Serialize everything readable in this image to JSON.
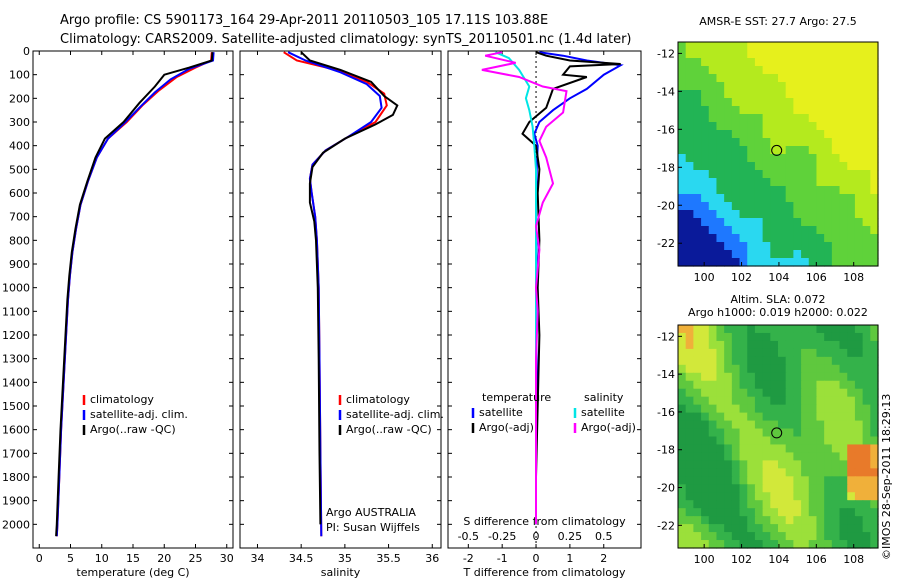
{
  "header": {
    "line1": "Argo profile: CS 5901173_164 29-Apr-2011 20110503_105 17.11S 103.88E",
    "line2": "Climatology: CARS2009. Satellite-adjusted climatology: synTS_20110501.nc (1.4d later)"
  },
  "credit": "©IMOS 28-Sep-2011 18:29:13",
  "colors": {
    "climatology": "#ff0000",
    "satellite": "#0000ff",
    "argo": "#000000",
    "sal_satellite": "#00e5e5",
    "sal_argo": "#ff00ff"
  },
  "chart_data": [
    {
      "type": "line",
      "id": "temperature",
      "xlabel": "temperature (deg C)",
      "ylabel": "",
      "xlim": [
        -1,
        31
      ],
      "ylim": [
        2100,
        0
      ],
      "xticks": [
        0,
        5,
        10,
        15,
        20,
        25,
        30
      ],
      "yticks": [
        0,
        100,
        200,
        300,
        400,
        500,
        600,
        700,
        800,
        900,
        1000,
        1100,
        1200,
        1300,
        1400,
        1500,
        1600,
        1700,
        1800,
        1900,
        2000
      ],
      "legend": [
        "climatology",
        "satellite-adj. clim.",
        "Argo(..raw -QC)"
      ],
      "series": [
        {
          "name": "climatology",
          "points": [
            [
              27.6,
              5
            ],
            [
              27.5,
              40
            ],
            [
              25,
              70
            ],
            [
              22,
              110
            ],
            [
              19,
              170
            ],
            [
              16.5,
              230
            ],
            [
              14,
              300
            ],
            [
              11,
              370
            ],
            [
              9.2,
              450
            ],
            [
              7.8,
              550
            ],
            [
              6.6,
              650
            ],
            [
              5.9,
              750
            ],
            [
              5.3,
              850
            ],
            [
              4.9,
              950
            ],
            [
              4.6,
              1050
            ],
            [
              4.3,
              1200
            ],
            [
              3.9,
              1400
            ],
            [
              3.5,
              1600
            ],
            [
              3.2,
              1800
            ],
            [
              2.9,
              2000
            ],
            [
              2.8,
              2050
            ]
          ]
        },
        {
          "name": "satellite-adj. clim.",
          "points": [
            [
              27.9,
              5
            ],
            [
              27.8,
              40
            ],
            [
              24,
              75
            ],
            [
              21,
              120
            ],
            [
              18.5,
              175
            ],
            [
              16.2,
              235
            ],
            [
              13.8,
              300
            ],
            [
              11,
              370
            ],
            [
              9.2,
              450
            ],
            [
              7.8,
              550
            ],
            [
              6.6,
              650
            ],
            [
              5.9,
              750
            ],
            [
              5.3,
              850
            ],
            [
              4.9,
              950
            ],
            [
              4.6,
              1050
            ],
            [
              4.3,
              1200
            ],
            [
              3.9,
              1400
            ],
            [
              3.5,
              1600
            ],
            [
              3.2,
              1800
            ],
            [
              2.9,
              2000
            ],
            [
              2.8,
              2050
            ]
          ]
        },
        {
          "name": "Argo(..raw -QC)",
          "points": [
            [
              27.7,
              5
            ],
            [
              27.6,
              40
            ],
            [
              24,
              70
            ],
            [
              20,
              100
            ],
            [
              18.5,
              150
            ],
            [
              16,
              220
            ],
            [
              13.5,
              300
            ],
            [
              10.5,
              370
            ],
            [
              9,
              450
            ],
            [
              7.7,
              550
            ],
            [
              6.5,
              650
            ],
            [
              5.8,
              750
            ],
            [
              5.2,
              850
            ],
            [
              4.8,
              950
            ],
            [
              4.5,
              1050
            ],
            [
              4.2,
              1200
            ],
            [
              3.8,
              1400
            ],
            [
              3.4,
              1600
            ],
            [
              3.1,
              1800
            ],
            [
              2.8,
              2000
            ],
            [
              2.7,
              2050
            ]
          ]
        }
      ]
    },
    {
      "type": "line",
      "id": "salinity",
      "xlabel": "salinity",
      "ylabel": "",
      "xlim": [
        33.8,
        36.1
      ],
      "ylim": [
        2100,
        0
      ],
      "xticks": [
        34,
        34.5,
        35,
        35.5,
        36
      ],
      "legend": [
        "climatology",
        "satellite-adj. clim.",
        "Argo(..raw -QC)"
      ],
      "annotation": [
        "Argo AUSTRALIA",
        "PI: Susan Wijffels"
      ],
      "series": [
        {
          "name": "climatology",
          "points": [
            [
              34.3,
              5
            ],
            [
              34.45,
              40
            ],
            [
              34.9,
              80
            ],
            [
              35.25,
              130
            ],
            [
              35.45,
              180
            ],
            [
              35.48,
              230
            ],
            [
              35.35,
              300
            ],
            [
              35.05,
              360
            ],
            [
              34.78,
              420
            ],
            [
              34.63,
              480
            ],
            [
              34.6,
              540
            ],
            [
              34.62,
              600
            ],
            [
              34.66,
              700
            ],
            [
              34.68,
              800
            ],
            [
              34.7,
              1000
            ],
            [
              34.71,
              1300
            ],
            [
              34.72,
              1700
            ],
            [
              34.73,
              2050
            ]
          ]
        },
        {
          "name": "satellite-adj. clim.",
          "points": [
            [
              34.35,
              5
            ],
            [
              34.55,
              40
            ],
            [
              34.95,
              90
            ],
            [
              35.25,
              140
            ],
            [
              35.4,
              190
            ],
            [
              35.42,
              240
            ],
            [
              35.3,
              300
            ],
            [
              35.05,
              360
            ],
            [
              34.78,
              420
            ],
            [
              34.63,
              480
            ],
            [
              34.6,
              540
            ],
            [
              34.62,
              600
            ],
            [
              34.66,
              700
            ],
            [
              34.68,
              800
            ],
            [
              34.7,
              1000
            ],
            [
              34.71,
              1300
            ],
            [
              34.72,
              1700
            ],
            [
              34.73,
              2050
            ]
          ]
        },
        {
          "name": "Argo(..raw -QC)",
          "points": [
            [
              34.5,
              5
            ],
            [
              34.6,
              40
            ],
            [
              34.95,
              80
            ],
            [
              35.3,
              130
            ],
            [
              35.45,
              190
            ],
            [
              35.6,
              230
            ],
            [
              35.55,
              270
            ],
            [
              35.35,
              310
            ],
            [
              35.0,
              370
            ],
            [
              34.75,
              430
            ],
            [
              34.63,
              490
            ],
            [
              34.6,
              560
            ],
            [
              34.6,
              640
            ],
            [
              34.65,
              720
            ],
            [
              34.67,
              800
            ],
            [
              34.69,
              1000
            ],
            [
              34.7,
              1300
            ],
            [
              34.71,
              1700
            ],
            [
              34.72,
              2000
            ]
          ]
        }
      ]
    },
    {
      "type": "line",
      "id": "differences",
      "xlabel": "T difference from climatology",
      "xlabel_top": "S difference from climatology",
      "xlim": [
        -2.6,
        3.1
      ],
      "ylim": [
        2100,
        0
      ],
      "xticks_T": [
        -2,
        -1,
        0,
        1,
        2
      ],
      "xticks_S": [
        "-0.5",
        "-0.25",
        "0",
        "0.25",
        "0.5"
      ],
      "xticks_S_pos": [
        -2,
        -1,
        0,
        1,
        2
      ],
      "legend_left_title": "temperature",
      "legend_right_title": "salinity",
      "legend": [
        "satellite",
        "Argo(-adj)",
        "satellite",
        "Argo(-adj)"
      ],
      "series": [
        {
          "name": "satellite",
          "quantity": "temperature",
          "points": [
            [
              0.1,
              5
            ],
            [
              0.8,
              20
            ],
            [
              1.5,
              40
            ],
            [
              2.5,
              60
            ],
            [
              2.0,
              100
            ],
            [
              1.5,
              160
            ],
            [
              1.0,
              200
            ],
            [
              0.5,
              250
            ],
            [
              0.1,
              300
            ],
            [
              -0.05,
              350
            ],
            [
              0.05,
              400
            ],
            [
              0.02,
              500
            ],
            [
              0.0,
              700
            ],
            [
              0.02,
              900
            ],
            [
              0.0,
              1100
            ],
            [
              0.02,
              1400
            ],
            [
              0.0,
              1700
            ],
            [
              0.0,
              2000
            ]
          ]
        },
        {
          "name": "Argo(-adj)",
          "quantity": "temperature",
          "points": [
            [
              0.0,
              5
            ],
            [
              0.3,
              20
            ],
            [
              1.0,
              40
            ],
            [
              2.5,
              55
            ],
            [
              1.0,
              65
            ],
            [
              0.8,
              100
            ],
            [
              1.5,
              110
            ],
            [
              0.5,
              160
            ],
            [
              0.3,
              240
            ],
            [
              -0.2,
              300
            ],
            [
              -0.4,
              350
            ],
            [
              0.0,
              400
            ],
            [
              0.1,
              500
            ],
            [
              0.05,
              600
            ],
            [
              0.1,
              800
            ],
            [
              0.05,
              1000
            ],
            [
              0.1,
              1200
            ],
            [
              0.05,
              1500
            ],
            [
              0.0,
              1800
            ],
            [
              0.0,
              2000
            ]
          ]
        },
        {
          "name": "satellite",
          "quantity": "salinity",
          "points": [
            [
              -1.2,
              5
            ],
            [
              -0.8,
              30
            ],
            [
              -0.5,
              80
            ],
            [
              -0.2,
              150
            ],
            [
              -0.3,
              200
            ],
            [
              -0.2,
              250
            ],
            [
              -0.1,
              320
            ],
            [
              -0.05,
              400
            ],
            [
              0.0,
              500
            ],
            [
              0.0,
              700
            ],
            [
              0.0,
              1000
            ],
            [
              0.0,
              1400
            ],
            [
              0.0,
              2000
            ]
          ]
        },
        {
          "name": "Argo(-adj)",
          "quantity": "salinity",
          "points": [
            [
              -1.0,
              5
            ],
            [
              -1.5,
              20
            ],
            [
              -0.6,
              50
            ],
            [
              -1.6,
              80
            ],
            [
              -0.5,
              110
            ],
            [
              0.2,
              150
            ],
            [
              0.9,
              170
            ],
            [
              0.8,
              260
            ],
            [
              0.3,
              320
            ],
            [
              0.1,
              380
            ],
            [
              0.3,
              450
            ],
            [
              0.5,
              560
            ],
            [
              0.2,
              640
            ],
            [
              0.0,
              740
            ],
            [
              0.1,
              840
            ],
            [
              0.0,
              1000
            ],
            [
              0.05,
              1100
            ],
            [
              0.0,
              1300
            ],
            [
              0.0,
              1600
            ],
            [
              0.0,
              2000
            ]
          ]
        }
      ]
    },
    {
      "type": "heatmap",
      "id": "sst-map",
      "title": "AMSR-E SST: 27.7 Argo: 27.5",
      "xlim": [
        98.6,
        109.3
      ],
      "ylim": [
        -23.2,
        -11.4
      ],
      "xticks": [
        100,
        102,
        104,
        106,
        108
      ],
      "yticks": [
        -12,
        -14,
        -16,
        -18,
        -20,
        -22
      ],
      "marker": [
        103.88,
        -17.11
      ],
      "colors": [
        "#0a1a9a",
        "#1e78ff",
        "#2ad8f0",
        "#22b455",
        "#5fd23a",
        "#b4ea1e",
        "#e6f01c"
      ]
    },
    {
      "type": "heatmap",
      "id": "sla-map",
      "title": "Altim. SLA: 0.072",
      "subtitle": "Argo h1000: 0.019 h2000: 0.022",
      "xlim": [
        98.6,
        109.3
      ],
      "ylim": [
        -23.2,
        -11.4
      ],
      "xticks": [
        100,
        102,
        104,
        106,
        108
      ],
      "yticks": [
        -12,
        -14,
        -16,
        -18,
        -20,
        -22
      ],
      "marker": [
        103.88,
        -17.11
      ],
      "colors": [
        "#1f9a42",
        "#34b24a",
        "#5fc83e",
        "#9be03a",
        "#d2e83a",
        "#f0b03a",
        "#e87a2a"
      ]
    }
  ]
}
